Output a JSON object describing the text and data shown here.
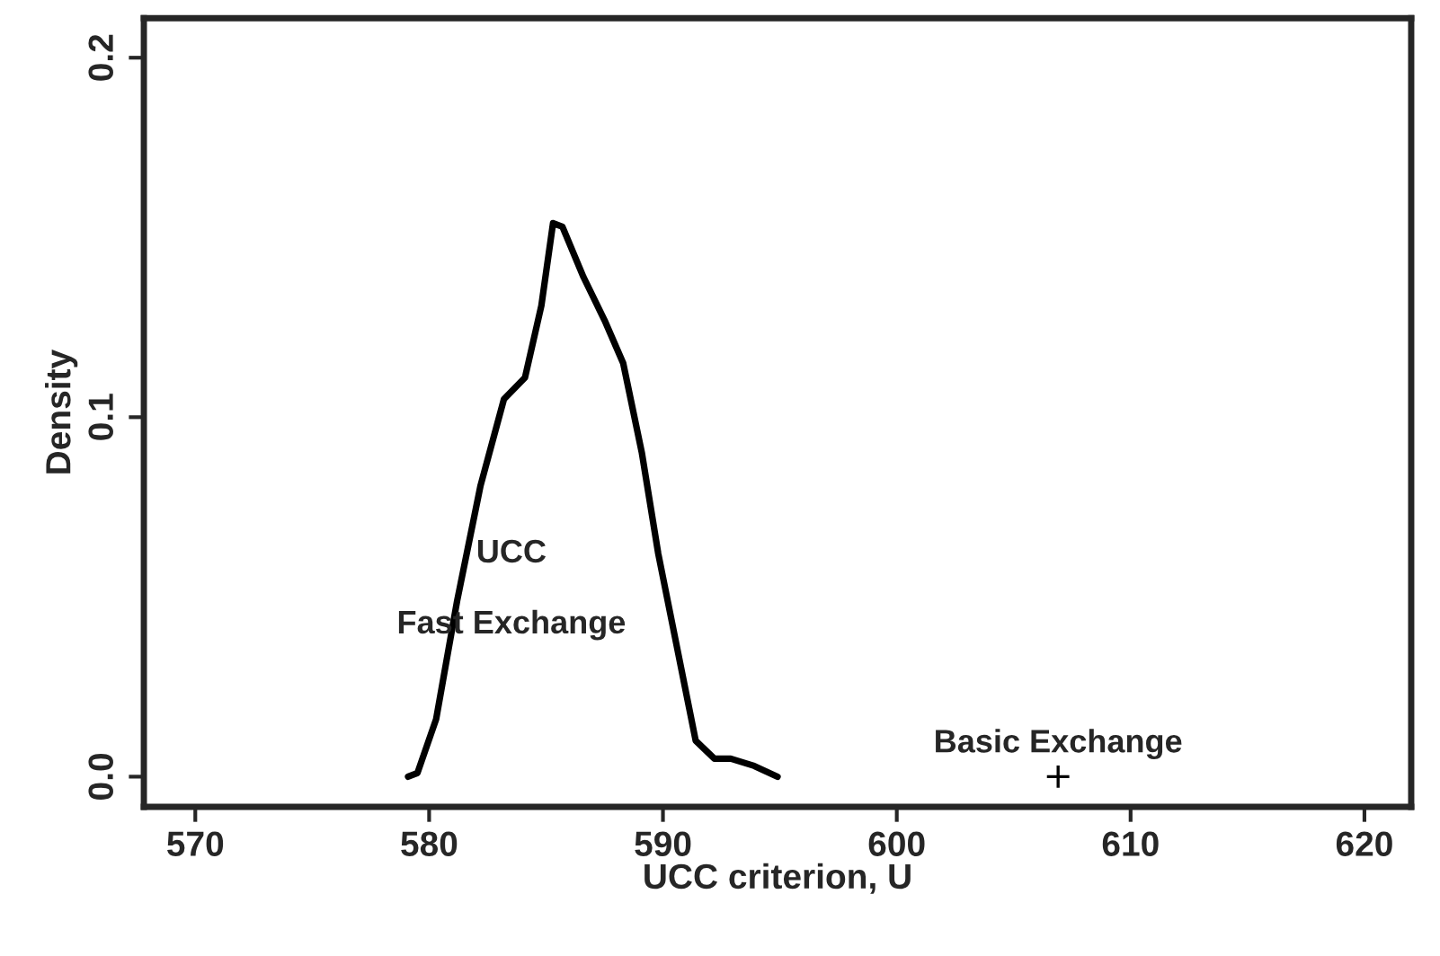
{
  "chart_data": {
    "type": "line",
    "xlabel": "UCC criterion, U",
    "ylabel": "Density",
    "xlim": [
      567.8,
      622
    ],
    "xticks": [
      570,
      580,
      590,
      600,
      610,
      620
    ],
    "ylim": [
      -0.0084,
      0.211
    ],
    "yticks": [
      {
        "value": 0,
        "label": "0.0"
      },
      0.1,
      0.2
    ],
    "grid": false,
    "legend": false,
    "series": [
      {
        "color": "#000000",
        "marker": "none",
        "x": [
          579.1,
          579.5,
          580.3,
          581.2,
          582.2,
          583.2,
          584.1,
          584.8,
          585.3,
          585.7,
          586.6,
          587.5,
          588.3,
          589.1,
          589.8,
          590.6,
          591.4,
          592.2,
          592.9,
          593.9,
          594.9
        ],
        "values": [
          0.0,
          0.001,
          0.016,
          0.049,
          0.081,
          0.105,
          0.111,
          0.131,
          0.154,
          0.153,
          0.139,
          0.127,
          0.115,
          0.09,
          0.062,
          0.036,
          0.01,
          0.005,
          0.005,
          0.003,
          0.0
        ]
      },
      {
        "type": "scatter",
        "name": "Basic Exchange",
        "color": "#000000",
        "marker": "cross",
        "x": [
          606.9
        ],
        "values": [
          0.0
        ]
      }
    ],
    "annotations": [
      "UCC",
      "Fast Exchange"
    ]
  }
}
